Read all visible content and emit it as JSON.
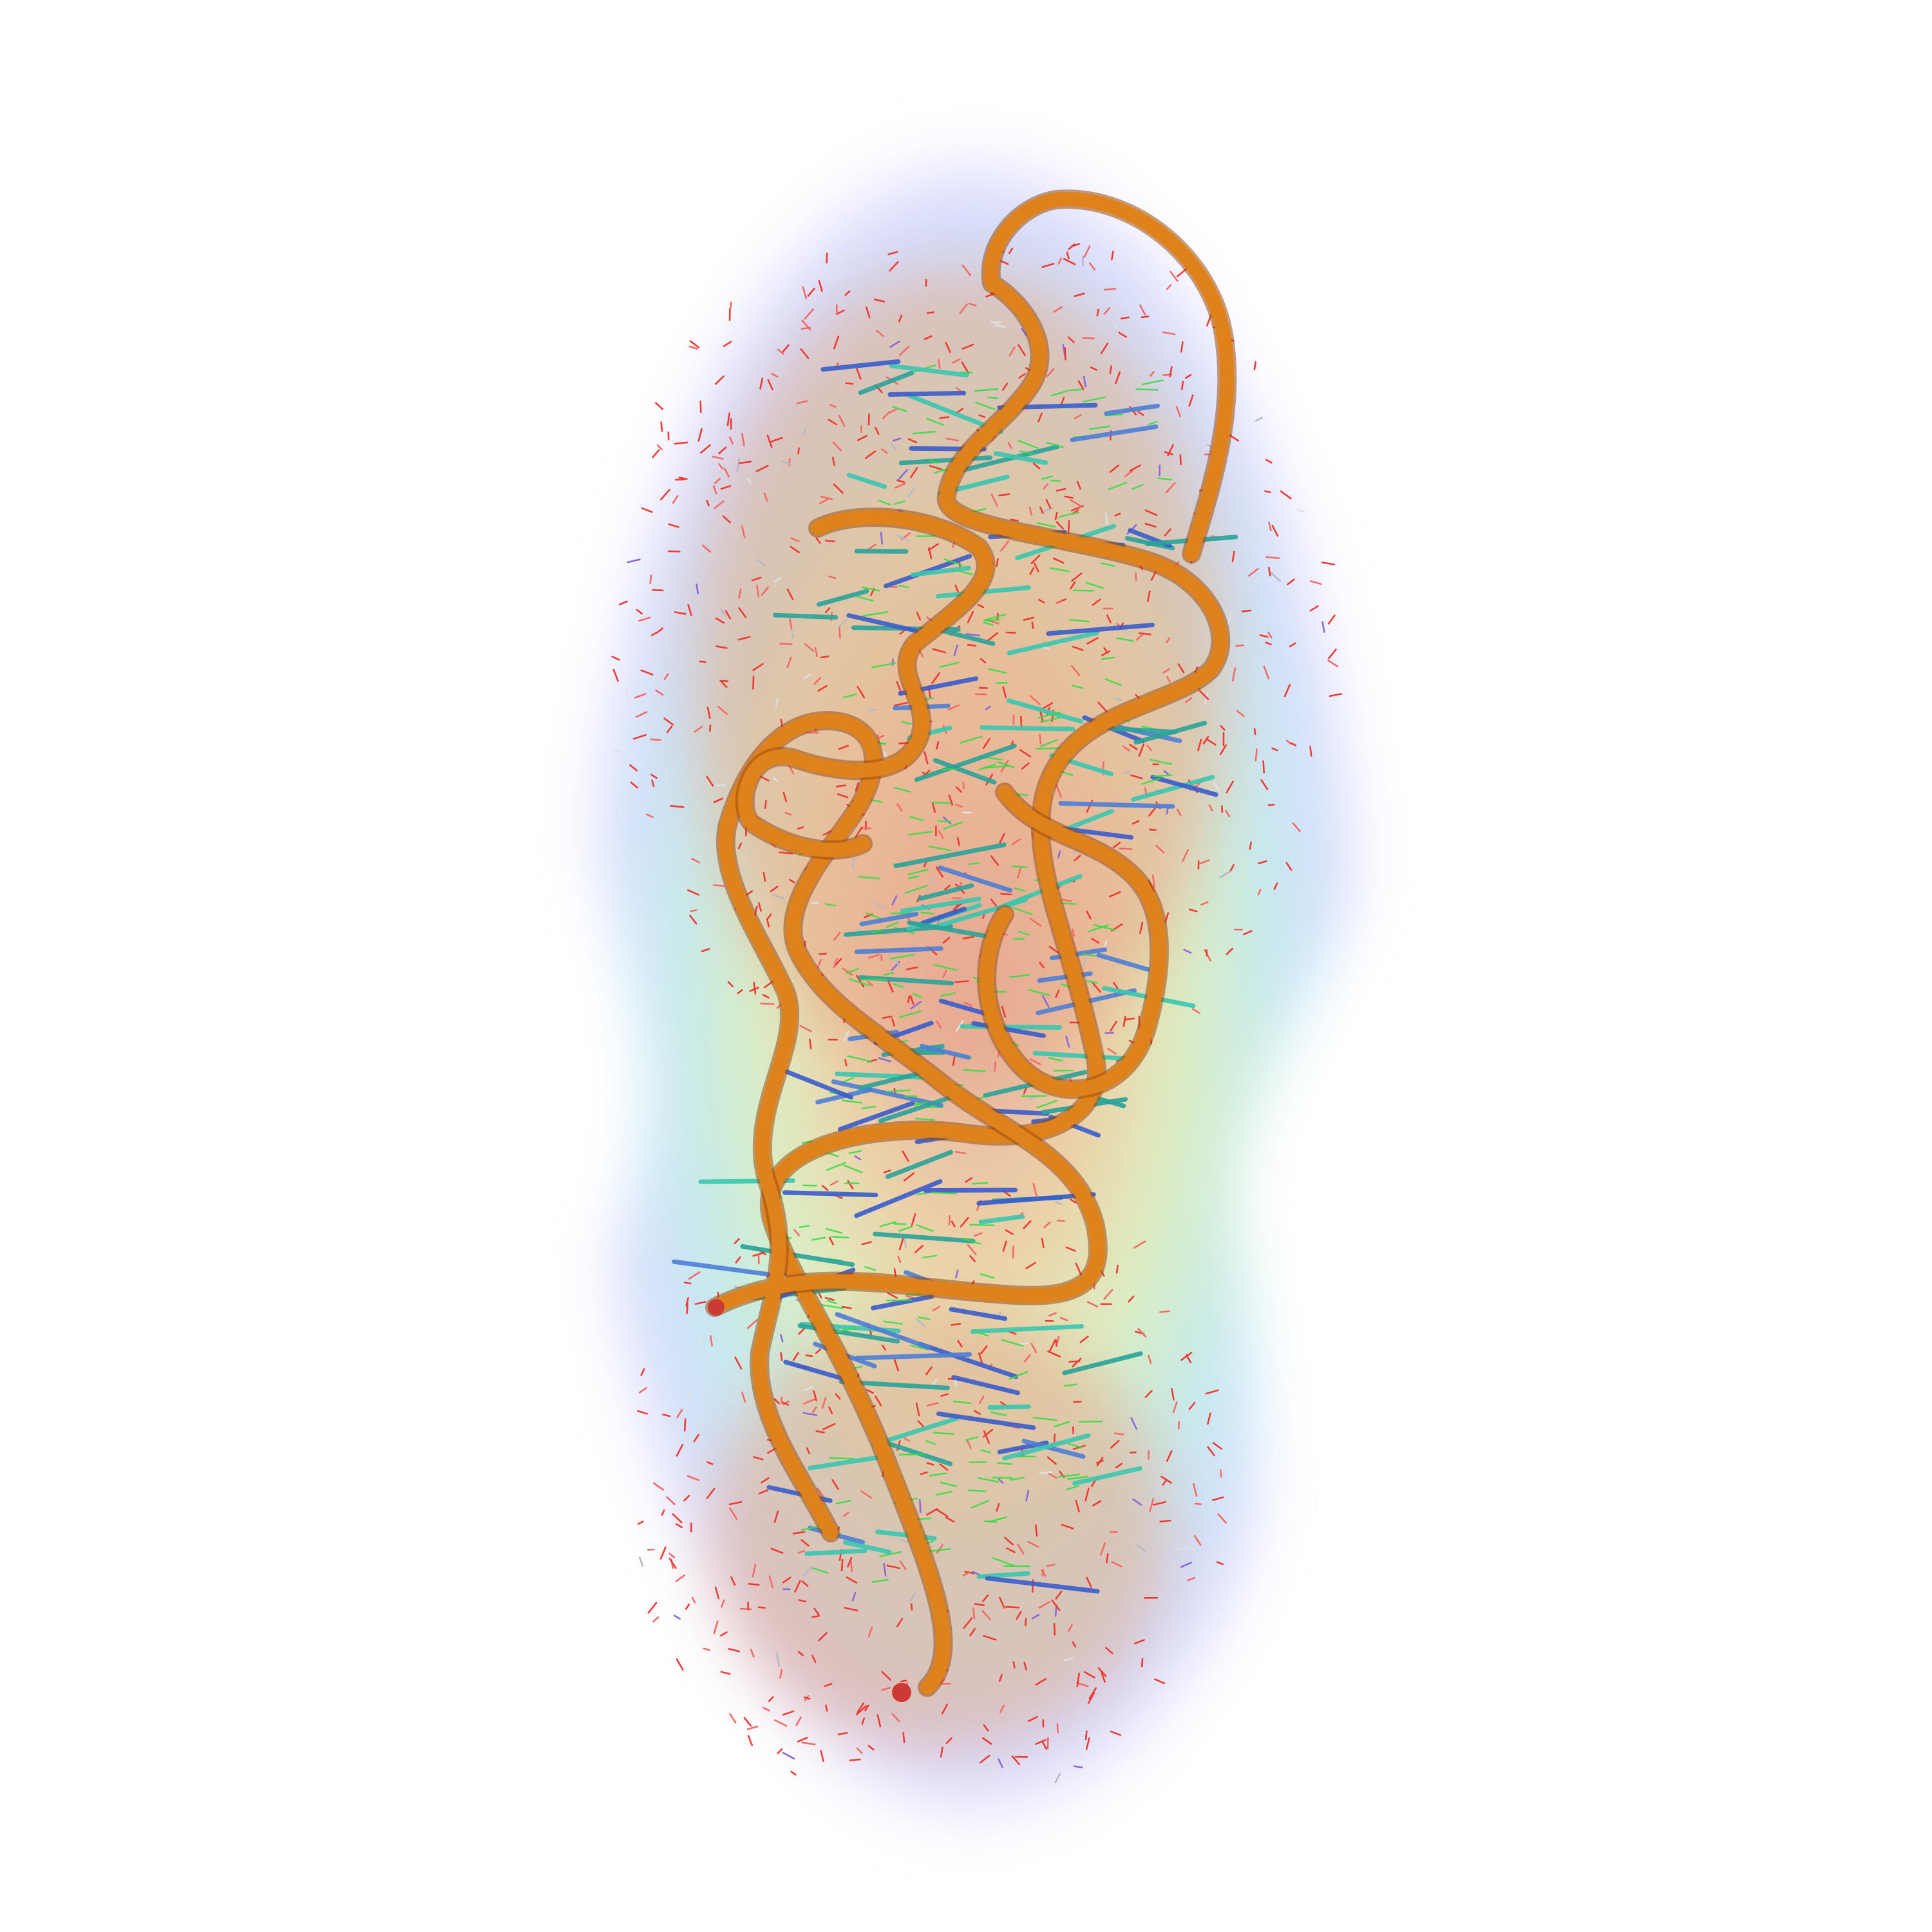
{
  "scene": {
    "background": "#ffffff",
    "density_cloud": {
      "gradient_stops": [
        "#e2a08a",
        "#e9c99a",
        "#d8ecb4",
        "#bfe9d8",
        "#bfe3f7",
        "#d2d2fb",
        "#ecebff"
      ],
      "description_icon": "density-map"
    },
    "backbone": {
      "color": "#e0821a",
      "highlight": "#f6b04e",
      "shadow": "#9a4d10",
      "terminus_color": "#cc3a33"
    },
    "nucleotide_colors": [
      "#33dd44",
      "#3a5ccc",
      "#2aa39a",
      "#4d7fd6",
      "#3bc7b0"
    ],
    "solvent_colors": [
      "#ee3b35",
      "#f26a6a",
      "#e0e0e8",
      "#b8b8c4",
      "#8a6ad8"
    ]
  }
}
